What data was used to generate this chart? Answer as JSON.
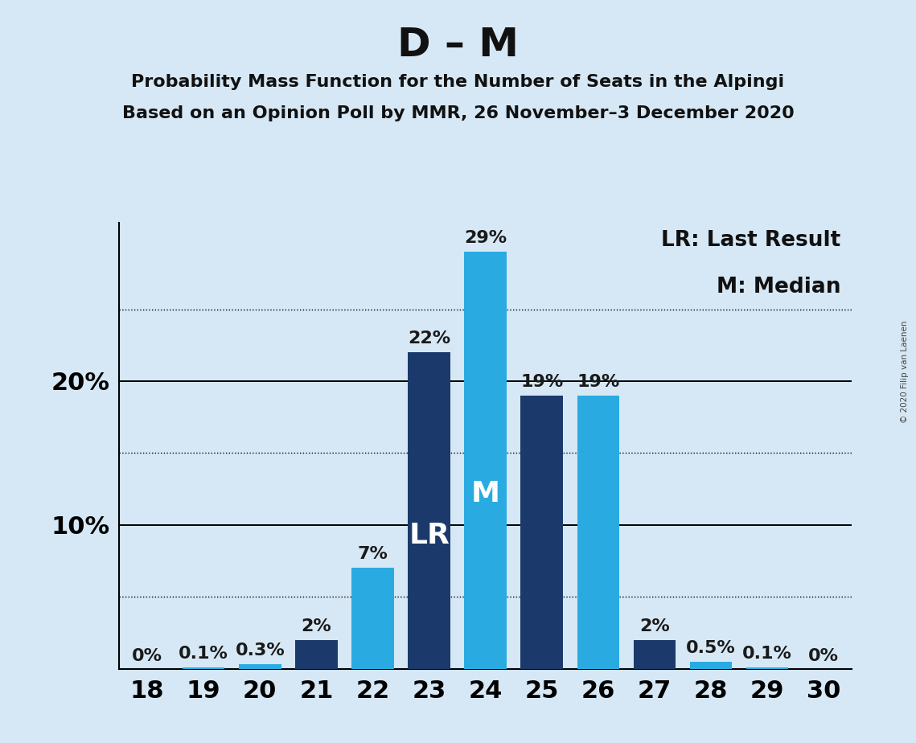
{
  "title": "D – M",
  "subtitle1": "Probability Mass Function for the Number of Seats in the Alpingi",
  "subtitle2": "Based on an Opinion Poll by MMR, 26 November–3 December 2020",
  "copyright": "© 2020 Filip van Laenen",
  "seats": [
    18,
    19,
    20,
    21,
    22,
    23,
    24,
    25,
    26,
    27,
    28,
    29,
    30
  ],
  "values": [
    0.0,
    0.1,
    0.3,
    2.0,
    7.0,
    22.0,
    29.0,
    19.0,
    19.0,
    2.0,
    0.5,
    0.1,
    0.0
  ],
  "labels": [
    "0%",
    "0.1%",
    "0.3%",
    "2%",
    "7%",
    "22%",
    "29%",
    "19%",
    "19%",
    "2%",
    "0.5%",
    "0.1%",
    "0%"
  ],
  "bar_colors": [
    "#29ABE2",
    "#29ABE2",
    "#29ABE2",
    "#1B3A6B",
    "#29ABE2",
    "#1B3A6B",
    "#29ABE2",
    "#1B3A6B",
    "#29ABE2",
    "#1B3A6B",
    "#29ABE2",
    "#29ABE2",
    "#29ABE2"
  ],
  "lr_seat": 23,
  "median_seat": 24,
  "lr_label": "LR",
  "median_label": "M",
  "legend_lr": "LR: Last Result",
  "legend_m": "M: Median",
  "background_color": "#D6E8F5",
  "yticks": [
    10,
    20
  ],
  "ytick_labels": [
    "10%",
    "20%"
  ],
  "dotted_yticks": [
    5,
    15,
    25
  ],
  "solid_yticks": [
    0,
    10,
    20
  ],
  "ylim": [
    0,
    31
  ],
  "title_fontsize": 36,
  "subtitle_fontsize": 16,
  "axis_fontsize": 22,
  "bar_label_fontsize": 16,
  "bar_inner_label_fontsize": 26,
  "legend_fontsize": 19,
  "dark_blue": "#1B3A6B",
  "light_blue": "#29ABE2"
}
